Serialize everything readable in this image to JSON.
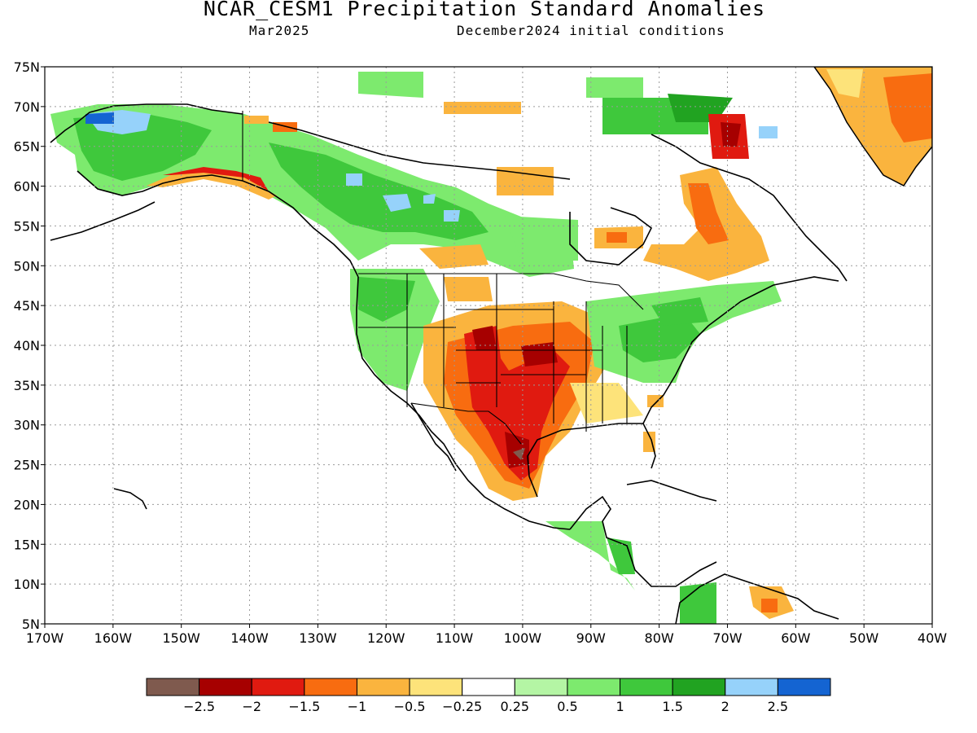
{
  "title": "NCAR_CESM1 Precipitation Standard Anomalies",
  "subtitle_left": "Mar2025",
  "subtitle_right": "December2024 initial conditions",
  "map": {
    "lon_range": [
      -170,
      -40
    ],
    "lat_range": [
      5,
      75
    ],
    "x_tick_labels": [
      "170W",
      "160W",
      "150W",
      "140W",
      "130W",
      "120W",
      "110W",
      "100W",
      "90W",
      "80W",
      "70W",
      "60W",
      "50W",
      "40W"
    ],
    "y_tick_labels": [
      "75N",
      "70N",
      "65N",
      "60N",
      "55N",
      "50N",
      "45N",
      "40N",
      "35N",
      "30N",
      "25N",
      "20N",
      "15N",
      "10N",
      "5N"
    ],
    "grid": true,
    "projection": "lat-lon"
  },
  "legend": {
    "colors": [
      "#7f5a4e",
      "#a60000",
      "#e01a10",
      "#f86c10",
      "#fab43e",
      "#fde37a",
      "#ffffff",
      "#b4f5a4",
      "#7dea6e",
      "#3fc83c",
      "#21a321",
      "#96d2fa",
      "#1464d2"
    ],
    "labels": [
      "−2.5",
      "−2",
      "−1.5",
      "−1",
      "−0.5",
      "−0.25",
      "0.25",
      "0.5",
      "1",
      "1.5",
      "2",
      "2.5"
    ]
  }
}
